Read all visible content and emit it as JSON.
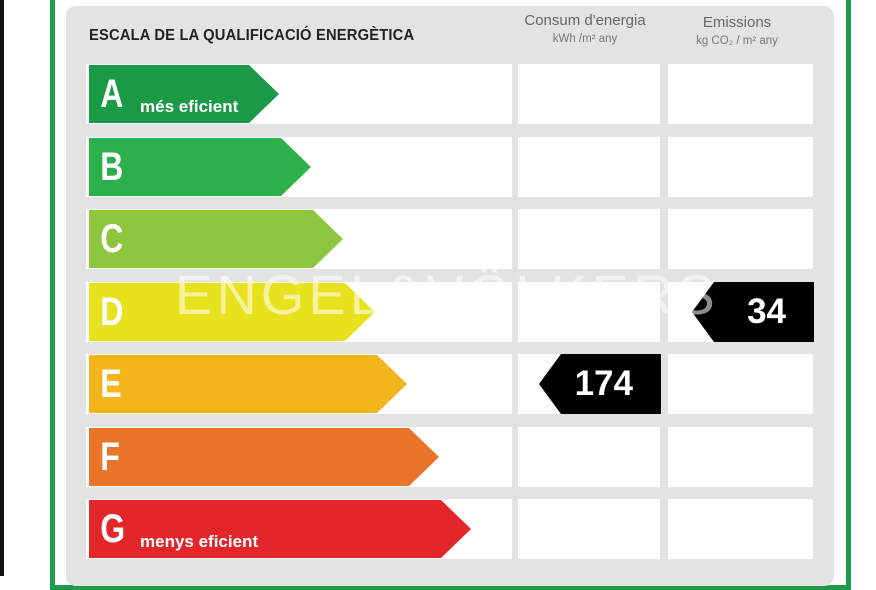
{
  "title": "ESCALA DE LA QUALIFICACIÓ ENERGÈTICA",
  "columns": {
    "consum": {
      "label": "Consum d'energia",
      "unit": "kWh /m² any"
    },
    "emissions": {
      "label": "Emissions",
      "unit": "kg CO₂ / m² any"
    }
  },
  "rows": [
    {
      "letter": "A",
      "color": "#1a9a47",
      "caption": "més eficient"
    },
    {
      "letter": "B",
      "color": "#2bb04a",
      "caption": ""
    },
    {
      "letter": "C",
      "color": "#8cc63f",
      "caption": ""
    },
    {
      "letter": "D",
      "color": "#e8e21e",
      "caption": ""
    },
    {
      "letter": "E",
      "color": "#f4b41c",
      "caption": ""
    },
    {
      "letter": "F",
      "color": "#e8752a",
      "caption": ""
    },
    {
      "letter": "G",
      "color": "#e3262a",
      "caption": "menys eficient"
    }
  ],
  "ratings": {
    "consum": {
      "class": "E",
      "value": "174"
    },
    "emissions": {
      "class": "D",
      "value": "34"
    }
  },
  "watermark": "ENGEL&VÖLKERS"
}
